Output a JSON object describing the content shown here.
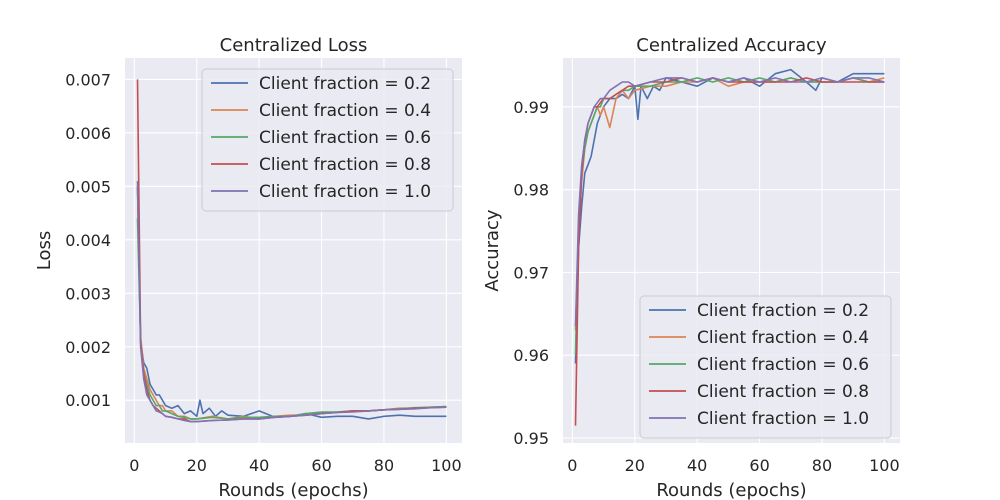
{
  "chart_data": [
    {
      "type": "line",
      "title": "Centralized Loss",
      "xlabel": "Rounds (epochs)",
      "ylabel": "Loss",
      "xlim": [
        -3,
        105
      ],
      "ylim": [
        0.0002,
        0.0074
      ],
      "xticks": [
        0,
        20,
        40,
        60,
        80,
        100
      ],
      "yticks": [
        0.001,
        0.002,
        0.003,
        0.004,
        0.005,
        0.006,
        0.007
      ],
      "ytick_labels": [
        "0.001",
        "0.002",
        "0.003",
        "0.004",
        "0.005",
        "0.006",
        "0.007"
      ],
      "grid": true,
      "legend_position": "top-right",
      "series": [
        {
          "name": "Client fraction = 0.2",
          "color": "#4c72b0",
          "x": [
            1,
            2,
            3,
            4,
            5,
            6,
            7,
            8,
            9,
            10,
            12,
            14,
            16,
            18,
            20,
            21,
            22,
            24,
            26,
            28,
            30,
            35,
            40,
            45,
            50,
            55,
            60,
            65,
            70,
            75,
            80,
            85,
            90,
            95,
            100
          ],
          "y": [
            0.005,
            0.0021,
            0.0017,
            0.0016,
            0.0013,
            0.0012,
            0.0011,
            0.0011,
            0.001,
            0.0009,
            0.00085,
            0.0009,
            0.00075,
            0.0008,
            0.0007,
            0.001,
            0.00075,
            0.00085,
            0.0007,
            0.0008,
            0.00072,
            0.0007,
            0.0008,
            0.00068,
            0.0007,
            0.00075,
            0.00068,
            0.0007,
            0.0007,
            0.00065,
            0.0007,
            0.00072,
            0.0007,
            0.0007,
            0.0007
          ]
        },
        {
          "name": "Client fraction = 0.4",
          "color": "#dd8452",
          "x": [
            1,
            2,
            3,
            4,
            5,
            6,
            7,
            8,
            9,
            10,
            12,
            14,
            16,
            18,
            20,
            25,
            30,
            35,
            40,
            45,
            50,
            55,
            60,
            65,
            70,
            75,
            80,
            85,
            90,
            95,
            100
          ],
          "y": [
            0.005,
            0.0022,
            0.0016,
            0.0014,
            0.0012,
            0.0011,
            0.001,
            0.0009,
            0.0009,
            0.0008,
            0.0008,
            0.0007,
            0.0007,
            0.00065,
            0.00065,
            0.0007,
            0.00065,
            0.0007,
            0.00065,
            0.0007,
            0.00072,
            0.00072,
            0.00075,
            0.00078,
            0.0008,
            0.0008,
            0.00082,
            0.00085,
            0.00085,
            0.00087,
            0.00088
          ]
        },
        {
          "name": "Client fraction = 0.6",
          "color": "#55a868",
          "x": [
            1,
            2,
            3,
            4,
            5,
            6,
            7,
            8,
            9,
            10,
            12,
            14,
            16,
            18,
            20,
            25,
            30,
            35,
            40,
            45,
            50,
            55,
            60,
            65,
            70,
            75,
            80,
            85,
            90,
            95,
            100
          ],
          "y": [
            0.0044,
            0.0021,
            0.0015,
            0.0013,
            0.0011,
            0.001,
            0.0009,
            0.0009,
            0.0008,
            0.0008,
            0.00075,
            0.0007,
            0.00068,
            0.00065,
            0.00065,
            0.00068,
            0.00065,
            0.00068,
            0.00068,
            0.0007,
            0.0007,
            0.00075,
            0.00078,
            0.00078,
            0.0008,
            0.0008,
            0.00082,
            0.00084,
            0.00086,
            0.00087,
            0.00088
          ]
        },
        {
          "name": "Client fraction = 0.8",
          "color": "#c44e52",
          "x": [
            1,
            2,
            3,
            4,
            5,
            6,
            7,
            8,
            9,
            10,
            12,
            14,
            16,
            18,
            20,
            25,
            30,
            35,
            40,
            45,
            50,
            55,
            60,
            65,
            70,
            75,
            80,
            85,
            90,
            95,
            100
          ],
          "y": [
            0.007,
            0.0021,
            0.0015,
            0.0012,
            0.001,
            0.0009,
            0.00085,
            0.0008,
            0.00075,
            0.0007,
            0.00068,
            0.00065,
            0.00065,
            0.0006,
            0.0006,
            0.00062,
            0.00063,
            0.00065,
            0.00065,
            0.00068,
            0.0007,
            0.00072,
            0.00075,
            0.00077,
            0.0008,
            0.0008,
            0.00082,
            0.00083,
            0.00085,
            0.00086,
            0.00087
          ]
        },
        {
          "name": "Client fraction = 1.0",
          "color": "#8172b3",
          "x": [
            1,
            2,
            3,
            4,
            5,
            6,
            7,
            8,
            9,
            10,
            12,
            14,
            16,
            18,
            20,
            25,
            30,
            35,
            40,
            45,
            50,
            55,
            60,
            65,
            70,
            75,
            80,
            85,
            90,
            95,
            100
          ],
          "y": [
            0.0051,
            0.002,
            0.0014,
            0.0011,
            0.001,
            0.0009,
            0.0008,
            0.00078,
            0.00075,
            0.0007,
            0.00068,
            0.00065,
            0.00062,
            0.0006,
            0.0006,
            0.00062,
            0.00063,
            0.00065,
            0.00065,
            0.00068,
            0.0007,
            0.00072,
            0.00075,
            0.00077,
            0.00078,
            0.0008,
            0.00082,
            0.00083,
            0.00084,
            0.00086,
            0.00087
          ]
        }
      ]
    },
    {
      "type": "line",
      "title": "Centralized Accuracy",
      "xlabel": "Rounds (epochs)",
      "ylabel": "Accuracy",
      "xlim": [
        -3,
        105
      ],
      "ylim": [
        0.9494,
        0.9959
      ],
      "xticks": [
        0,
        20,
        40,
        60,
        80,
        100
      ],
      "yticks": [
        0.95,
        0.96,
        0.97,
        0.98,
        0.99
      ],
      "ytick_labels": [
        "0.95",
        "0.96",
        "0.97",
        "0.98",
        "0.99"
      ],
      "grid": true,
      "legend_position": "bottom-right",
      "series": [
        {
          "name": "Client fraction = 0.2",
          "color": "#4c72b0",
          "x": [
            1,
            2,
            3,
            4,
            5,
            6,
            7,
            8,
            9,
            10,
            12,
            14,
            16,
            18,
            20,
            21,
            22,
            24,
            26,
            28,
            30,
            35,
            40,
            45,
            50,
            55,
            60,
            65,
            70,
            75,
            78,
            80,
            85,
            90,
            95,
            100
          ],
          "y": [
            0.959,
            0.973,
            0.978,
            0.982,
            0.983,
            0.984,
            0.986,
            0.988,
            0.989,
            0.99,
            0.991,
            0.991,
            0.9915,
            0.991,
            0.9925,
            0.9885,
            0.9925,
            0.991,
            0.9925,
            0.992,
            0.9935,
            0.993,
            0.9925,
            0.9935,
            0.993,
            0.9935,
            0.9925,
            0.994,
            0.9945,
            0.993,
            0.992,
            0.9935,
            0.993,
            0.994,
            0.994,
            0.994
          ]
        },
        {
          "name": "Client fraction = 0.4",
          "color": "#dd8452",
          "x": [
            1,
            2,
            3,
            4,
            5,
            6,
            7,
            8,
            9,
            10,
            12,
            14,
            16,
            18,
            20,
            25,
            30,
            35,
            40,
            45,
            50,
            55,
            60,
            65,
            70,
            75,
            80,
            85,
            90,
            95,
            100
          ],
          "y": [
            0.963,
            0.975,
            0.981,
            0.985,
            0.987,
            0.988,
            0.989,
            0.99,
            0.989,
            0.99,
            0.9875,
            0.991,
            0.992,
            0.991,
            0.992,
            0.9925,
            0.9925,
            0.993,
            0.993,
            0.9935,
            0.9925,
            0.993,
            0.993,
            0.993,
            0.9935,
            0.993,
            0.993,
            0.993,
            0.9935,
            0.993,
            0.9935
          ]
        },
        {
          "name": "Client fraction = 0.6",
          "color": "#55a868",
          "x": [
            1,
            2,
            3,
            4,
            5,
            6,
            7,
            8,
            9,
            10,
            12,
            14,
            16,
            18,
            20,
            25,
            30,
            35,
            40,
            45,
            50,
            55,
            60,
            65,
            70,
            75,
            80,
            85,
            90,
            95,
            100
          ],
          "y": [
            0.96,
            0.976,
            0.982,
            0.985,
            0.987,
            0.988,
            0.989,
            0.99,
            0.99,
            0.991,
            0.991,
            0.9915,
            0.992,
            0.992,
            0.9925,
            0.9925,
            0.993,
            0.993,
            0.9935,
            0.993,
            0.9935,
            0.993,
            0.9935,
            0.993,
            0.9935,
            0.993,
            0.993,
            0.993,
            0.9935,
            0.993,
            0.993
          ]
        },
        {
          "name": "Client fraction = 0.8",
          "color": "#c44e52",
          "x": [
            1,
            2,
            3,
            4,
            5,
            6,
            7,
            8,
            9,
            10,
            12,
            14,
            16,
            18,
            20,
            25,
            30,
            35,
            40,
            45,
            50,
            55,
            60,
            65,
            70,
            75,
            80,
            85,
            90,
            95,
            100
          ],
          "y": [
            0.9515,
            0.973,
            0.982,
            0.986,
            0.988,
            0.989,
            0.99,
            0.99,
            0.9905,
            0.991,
            0.991,
            0.9915,
            0.992,
            0.9925,
            0.9925,
            0.993,
            0.993,
            0.9935,
            0.993,
            0.9935,
            0.993,
            0.993,
            0.993,
            0.993,
            0.993,
            0.9935,
            0.993,
            0.993,
            0.993,
            0.993,
            0.993
          ]
        },
        {
          "name": "Client fraction = 1.0",
          "color": "#8172b3",
          "x": [
            1,
            2,
            3,
            4,
            5,
            6,
            7,
            8,
            9,
            10,
            12,
            14,
            16,
            18,
            20,
            25,
            30,
            35,
            40,
            45,
            50,
            55,
            60,
            65,
            70,
            75,
            80,
            85,
            90,
            95,
            100
          ],
          "y": [
            0.9635,
            0.977,
            0.983,
            0.986,
            0.988,
            0.989,
            0.99,
            0.9905,
            0.991,
            0.991,
            0.992,
            0.9925,
            0.993,
            0.993,
            0.9925,
            0.993,
            0.9935,
            0.9935,
            0.993,
            0.9935,
            0.993,
            0.9935,
            0.993,
            0.9935,
            0.993,
            0.993,
            0.9935,
            0.993,
            0.9935,
            0.9935,
            0.993
          ]
        }
      ]
    }
  ]
}
